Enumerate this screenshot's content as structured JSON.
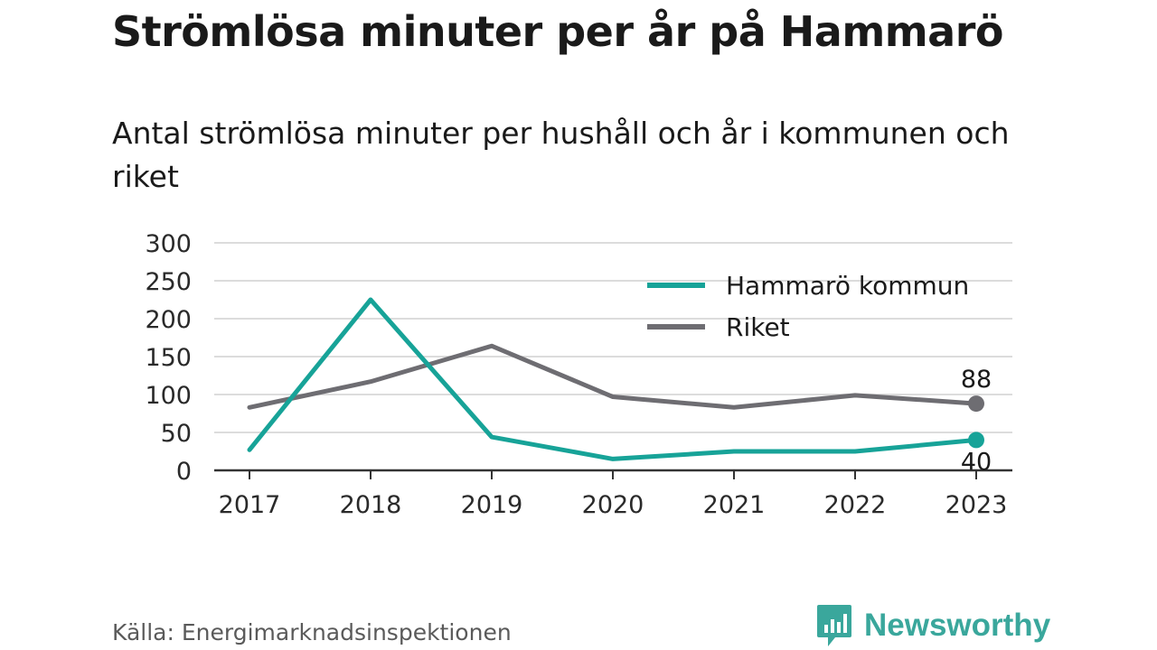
{
  "title": "Strömlösa minuter per år på Hammarö",
  "subtitle": "Antal strömlösa minuter per hushåll och år i kommunen och riket",
  "source": "Källa: Energimarknadsinspektionen",
  "brand": {
    "name": "Newsworthy",
    "icon": "newsworthy-logo-icon",
    "color": "#3aa79c"
  },
  "chart_data": {
    "type": "line",
    "x": [
      "2017",
      "2018",
      "2019",
      "2020",
      "2021",
      "2022",
      "2023"
    ],
    "ylim": [
      0,
      300
    ],
    "yticks": [
      0,
      50,
      100,
      150,
      200,
      250,
      300
    ],
    "grid": true,
    "legend_position": "top-right",
    "series": [
      {
        "name": "Hammarö kommun",
        "color": "#17a398",
        "values": [
          27,
          225,
          44,
          15,
          25,
          25,
          40
        ],
        "end_label": "40"
      },
      {
        "name": "Riket",
        "color": "#6e6d72",
        "values": [
          83,
          117,
          164,
          97,
          83,
          99,
          88
        ],
        "end_label": "88"
      }
    ]
  }
}
